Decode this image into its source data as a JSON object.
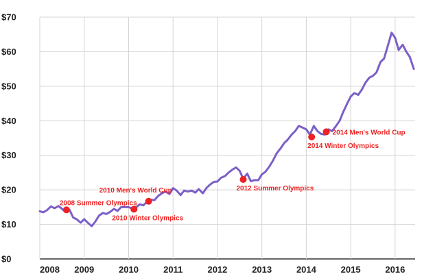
{
  "chart_data": {
    "type": "line",
    "title": "",
    "xlabel": "",
    "ylabel": "",
    "xlim": [
      2008,
      2016.45
    ],
    "ylim": [
      0,
      70
    ],
    "grid": true,
    "x_ticks": [
      2008,
      2009,
      2010,
      2011,
      2012,
      2013,
      2014,
      2015,
      2016
    ],
    "x_tick_labels": [
      "2008",
      "2009",
      "2010",
      "2011",
      "2012",
      "2013",
      "2014",
      "2015",
      "2016"
    ],
    "y_ticks": [
      0,
      10,
      20,
      30,
      40,
      50,
      60,
      70
    ],
    "y_tick_labels": [
      "$0",
      "$10",
      "$20",
      "$30",
      "$40",
      "$50",
      "$60",
      "$70"
    ],
    "series": [
      {
        "x": [
          2008.0,
          2008.08,
          2008.17,
          2008.25,
          2008.33,
          2008.42,
          2008.5,
          2008.58,
          2008.67,
          2008.75,
          2008.83,
          2008.92,
          2009.0,
          2009.08,
          2009.17,
          2009.25,
          2009.33,
          2009.42,
          2009.5,
          2009.58,
          2009.67,
          2009.75,
          2009.83,
          2009.92,
          2010.0,
          2010.08,
          2010.17,
          2010.25,
          2010.33,
          2010.42,
          2010.5,
          2010.58,
          2010.67,
          2010.75,
          2010.83,
          2010.92,
          2011.0,
          2011.08,
          2011.17,
          2011.25,
          2011.33,
          2011.42,
          2011.5,
          2011.58,
          2011.67,
          2011.75,
          2011.83,
          2011.92,
          2012.0,
          2012.08,
          2012.17,
          2012.25,
          2012.33,
          2012.42,
          2012.5,
          2012.58,
          2012.67,
          2012.75,
          2012.83,
          2012.92,
          2013.0,
          2013.08,
          2013.17,
          2013.25,
          2013.33,
          2013.42,
          2013.5,
          2013.58,
          2013.67,
          2013.75,
          2013.83,
          2013.92,
          2014.0,
          2014.08,
          2014.17,
          2014.25,
          2014.33,
          2014.42,
          2014.5,
          2014.58,
          2014.67,
          2014.75,
          2014.83,
          2014.92,
          2015.0,
          2015.08,
          2015.17,
          2015.25,
          2015.33,
          2015.42,
          2015.5,
          2015.58,
          2015.67,
          2015.75,
          2015.83,
          2015.92,
          2016.0,
          2016.08,
          2016.17,
          2016.25,
          2016.33,
          2016.42
        ],
        "values": [
          13.8,
          13.5,
          14.2,
          15.2,
          14.7,
          15.3,
          14.5,
          13.6,
          14.2,
          12.0,
          11.5,
          10.5,
          11.5,
          10.5,
          9.5,
          10.8,
          12.5,
          13.3,
          13.0,
          13.6,
          14.5,
          13.9,
          15.0,
          15.0,
          15.0,
          14.6,
          15.0,
          15.8,
          15.5,
          16.6,
          17.2,
          17.0,
          18.3,
          19.0,
          19.5,
          18.8,
          20.5,
          19.8,
          18.5,
          19.8,
          19.5,
          19.8,
          19.2,
          20.2,
          19.0,
          20.5,
          21.5,
          22.3,
          22.4,
          23.5,
          24.0,
          25.0,
          25.8,
          26.5,
          25.5,
          23.2,
          24.7,
          22.5,
          22.8,
          22.8,
          24.5,
          25.2,
          26.8,
          28.5,
          30.5,
          32.0,
          33.5,
          34.5,
          36.0,
          37.0,
          38.5,
          38.0,
          37.5,
          36.0,
          38.5,
          37.0,
          36.2,
          36.0,
          37.5,
          37.0,
          38.5,
          40.0,
          42.5,
          45.0,
          47.0,
          48.0,
          47.5,
          49.0,
          51.0,
          52.5,
          53.0,
          54.0,
          57.0,
          58.0,
          61.5,
          65.5,
          64.0,
          60.5,
          62.0,
          60.0,
          58.5,
          55.0
        ]
      }
    ],
    "series_color": "#7b5fc7",
    "annotations": [
      {
        "label": "2008 Summer Olympics",
        "x": 2008.6,
        "y": 14.2
      },
      {
        "label": "2010 Winter Olympics",
        "x": 2010.12,
        "y": 14.4
      },
      {
        "label": "2010 Men's World Cup",
        "x": 2010.45,
        "y": 16.7
      },
      {
        "label": "2012 Summer Olympics",
        "x": 2012.58,
        "y": 23.0
      },
      {
        "label": "2014 Winter Olympics",
        "x": 2014.12,
        "y": 35.3
      },
      {
        "label": "2014 Men's World Cup",
        "x": 2014.45,
        "y": 36.8
      }
    ],
    "annotation_color": "#ee2222"
  }
}
